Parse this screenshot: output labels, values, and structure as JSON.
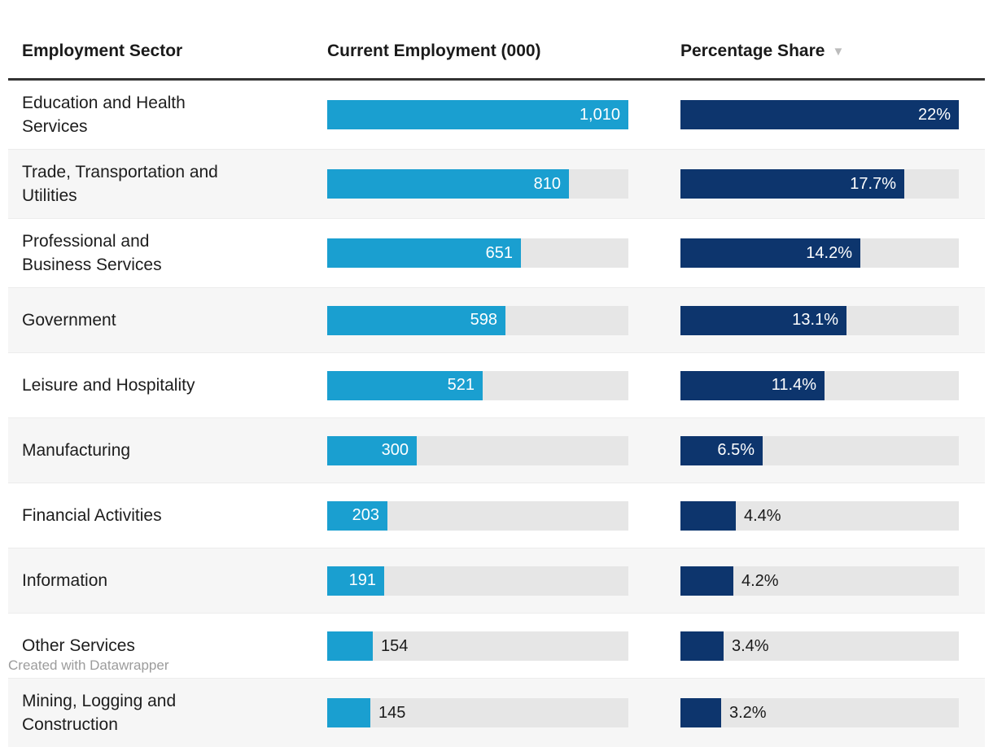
{
  "table": {
    "columns": [
      {
        "label": "Employment Sector"
      },
      {
        "label": "Current Employment (000)"
      },
      {
        "label": "Percentage Share"
      }
    ],
    "sort_indicator": "▼",
    "employment_max": 1010,
    "share_max": 22,
    "rows": [
      {
        "sector": "Education and Health Services",
        "employment": 1010,
        "employment_label": "1,010",
        "share": 22,
        "share_label": "22%"
      },
      {
        "sector": "Trade, Transportation and Utilities",
        "employment": 810,
        "employment_label": "810",
        "share": 17.7,
        "share_label": "17.7%"
      },
      {
        "sector": "Professional and Business Services",
        "employment": 651,
        "employment_label": "651",
        "share": 14.2,
        "share_label": "14.2%"
      },
      {
        "sector": "Government",
        "employment": 598,
        "employment_label": "598",
        "share": 13.1,
        "share_label": "13.1%"
      },
      {
        "sector": "Leisure and Hospitality",
        "employment": 521,
        "employment_label": "521",
        "share": 11.4,
        "share_label": "11.4%"
      },
      {
        "sector": "Manufacturing",
        "employment": 300,
        "employment_label": "300",
        "share": 6.5,
        "share_label": "6.5%"
      },
      {
        "sector": "Financial Activities",
        "employment": 203,
        "employment_label": "203",
        "share": 4.4,
        "share_label": "4.4%"
      },
      {
        "sector": "Information",
        "employment": 191,
        "employment_label": "191",
        "share": 4.2,
        "share_label": "4.2%"
      },
      {
        "sector": "Other Services",
        "employment": 154,
        "employment_label": "154",
        "share": 3.4,
        "share_label": "3.4%"
      },
      {
        "sector": "Mining, Logging and Construction",
        "employment": 145,
        "employment_label": "145",
        "share": 3.2,
        "share_label": "3.2%"
      }
    ]
  },
  "colors": {
    "employment_bar": "#1a9fd0",
    "share_bar": "#0d356d",
    "bar_track": "#e6e6e6",
    "row_alt_background": "#f6f6f6",
    "header_rule": "#333333",
    "sort_arrow": "#bcbcbc",
    "footer_text": "#9c9c9c"
  },
  "footer": {
    "credit": "Created with Datawrapper"
  },
  "chart_data": {
    "type": "table",
    "title": "",
    "columns": [
      "Employment Sector",
      "Current Employment (000)",
      "Percentage Share"
    ],
    "categories": [
      "Education and Health Services",
      "Trade, Transportation and Utilities",
      "Professional and Business Services",
      "Government",
      "Leisure and Hospitality",
      "Manufacturing",
      "Financial Activities",
      "Information",
      "Other Services",
      "Mining, Logging and Construction"
    ],
    "series": [
      {
        "name": "Current Employment (000)",
        "type": "bar",
        "max": 1010,
        "values": [
          1010,
          810,
          651,
          598,
          521,
          300,
          203,
          191,
          154,
          145
        ]
      },
      {
        "name": "Percentage Share",
        "type": "bar",
        "max": 22,
        "unit": "%",
        "sorted": "descending",
        "values": [
          22,
          17.7,
          14.2,
          13.1,
          11.4,
          6.5,
          4.4,
          4.2,
          3.4,
          3.2
        ]
      }
    ],
    "layout_hints": {
      "bars_in_cells": true,
      "grid": false,
      "legend": "none"
    },
    "footnote": "Created with Datawrapper"
  }
}
